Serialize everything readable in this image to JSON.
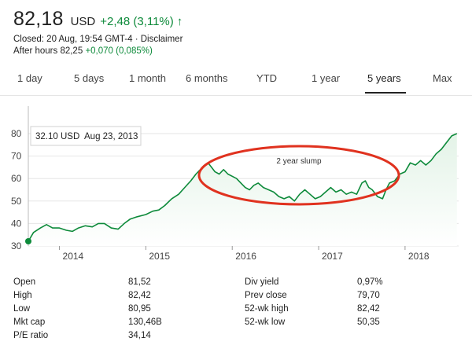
{
  "header": {
    "price": "82,18",
    "currency": "USD",
    "change": "+2,48 (3,11%)",
    "closed_line": "Closed: 20 Aug, 19:54 GMT-4 · Disclaimer",
    "after_hours_label": "After hours 82,25",
    "after_hours_change": "+0,070 (0,085%)",
    "up_icon": "up-arrow-icon"
  },
  "tabs": [
    {
      "label": "1 day"
    },
    {
      "label": "5 days"
    },
    {
      "label": "1 month"
    },
    {
      "label": "6 months"
    },
    {
      "label": "YTD"
    },
    {
      "label": "1 year"
    },
    {
      "label": "5 years",
      "active": true
    },
    {
      "label": "Max"
    }
  ],
  "tooltip": {
    "price": "32.10 USD",
    "date": "Aug 23, 2013"
  },
  "annotation": {
    "label": "2 year slump"
  },
  "colors": {
    "line": "#0d8a3a",
    "fill": "#e3f3e7",
    "annotation": "#e0321f",
    "grid": "#e6e6e6"
  },
  "chart_data": {
    "type": "area",
    "ylim": [
      30,
      80
    ],
    "y_ticks": [
      "30",
      "40",
      "50",
      "60",
      "70",
      "80"
    ],
    "x_ticks": [
      {
        "label": "2014",
        "x": 2014.0
      },
      {
        "label": "2015",
        "x": 2015.0
      },
      {
        "label": "2016",
        "x": 2016.0
      },
      {
        "label": "2017",
        "x": 2017.0
      },
      {
        "label": "2018",
        "x": 2018.0
      }
    ],
    "xlim": [
      2013.64,
      2018.62
    ],
    "series": [
      {
        "x": [
          2013.64,
          2013.7,
          2013.78,
          2013.85,
          2013.92,
          2014.0,
          2014.08,
          2014.15,
          2014.22,
          2014.3,
          2014.38,
          2014.45,
          2014.52,
          2014.6,
          2014.68,
          2014.75,
          2014.82,
          2014.9,
          2015.0,
          2015.08,
          2015.15,
          2015.22,
          2015.3,
          2015.38,
          2015.45,
          2015.52,
          2015.58,
          2015.63,
          2015.68,
          2015.72,
          2015.76,
          2015.8,
          2015.85,
          2015.9,
          2015.95,
          2016.0,
          2016.05,
          2016.1,
          2016.15,
          2016.2,
          2016.25,
          2016.3,
          2016.36,
          2016.42,
          2016.48,
          2016.54,
          2016.6,
          2016.66,
          2016.72,
          2016.78,
          2016.84,
          2016.9,
          2016.96,
          2017.02,
          2017.08,
          2017.14,
          2017.2,
          2017.26,
          2017.32,
          2017.38,
          2017.44,
          2017.5,
          2017.54,
          2017.58,
          2017.62,
          2017.68,
          2017.74,
          2017.78,
          2017.82,
          2017.88,
          2017.94,
          2018.0,
          2018.06,
          2018.12,
          2018.18,
          2018.24,
          2018.3,
          2018.36,
          2018.42,
          2018.48,
          2018.54,
          2018.6
        ],
        "y": [
          32.1,
          36,
          38,
          39.5,
          38,
          38,
          37,
          36.5,
          38,
          39,
          38.5,
          40,
          40,
          38,
          37.5,
          40,
          42,
          43,
          44,
          45.5,
          46,
          48,
          51,
          53,
          56,
          59,
          62,
          64,
          66,
          67,
          65,
          63,
          62,
          64,
          62,
          61,
          60,
          58,
          56,
          55,
          57,
          58,
          56,
          55,
          54,
          52,
          51,
          52,
          50,
          53,
          55,
          53,
          51,
          52,
          54,
          56,
          54,
          55,
          53,
          54,
          53,
          58,
          59,
          56,
          55,
          52,
          51,
          55,
          58,
          59,
          62,
          63,
          67,
          66,
          68,
          66,
          68,
          71,
          73,
          76,
          79,
          80
        ]
      }
    ]
  },
  "stats": {
    "left": [
      {
        "label": "Open",
        "value": "81,52"
      },
      {
        "label": "High",
        "value": "82,42"
      },
      {
        "label": "Low",
        "value": "80,95"
      },
      {
        "label": "Mkt cap",
        "value": "130,46B"
      },
      {
        "label": "P/E ratio",
        "value": "34,14"
      }
    ],
    "right": [
      {
        "label": "Div yield",
        "value": "0,97%"
      },
      {
        "label": "Prev close",
        "value": "79,70"
      },
      {
        "label": "52-wk high",
        "value": "82,42"
      },
      {
        "label": "52-wk low",
        "value": "50,35"
      }
    ]
  }
}
